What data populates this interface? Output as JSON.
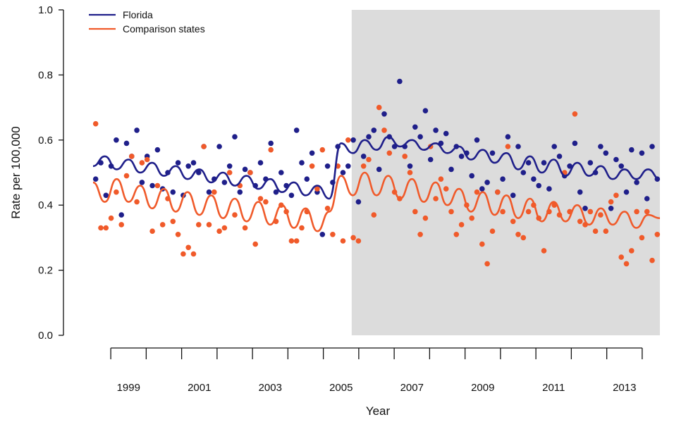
{
  "chart_data": {
    "type": "scatter",
    "xlabel": "Year",
    "ylabel": "Rate per 100,000",
    "xlim": [
      1998.5,
      2014.5
    ],
    "ylim": [
      0.0,
      1.0
    ],
    "x_ticks": [
      1999,
      2000,
      2001,
      2002,
      2003,
      2004,
      2005,
      2006,
      2007,
      2008,
      2009,
      2010,
      2011,
      2012,
      2013,
      2014
    ],
    "x_tick_labels": [
      {
        "x": 1999,
        "label": "1999"
      },
      {
        "x": 2001,
        "label": "2001"
      },
      {
        "x": 2003,
        "label": "2003"
      },
      {
        "x": 2005,
        "label": "2005"
      },
      {
        "x": 2007,
        "label": "2007"
      },
      {
        "x": 2009,
        "label": "2009"
      },
      {
        "x": 2011,
        "label": "2011"
      },
      {
        "x": 2013,
        "label": "2013"
      }
    ],
    "y_ticks": [
      {
        "value": 0.0,
        "label": "0.0"
      },
      {
        "value": 0.2,
        "label": "0.2"
      },
      {
        "value": 0.4,
        "label": "0.4"
      },
      {
        "value": 0.6,
        "label": "0.6"
      },
      {
        "value": 0.8,
        "label": "0.8"
      },
      {
        "value": 1.0,
        "label": "1.0"
      }
    ],
    "shaded_region": {
      "x_start": 2005.8,
      "x_end": 2014.5,
      "color": "#dcdcdc"
    },
    "legend_position": "top-left",
    "grid": false,
    "series": [
      {
        "name": "Florida",
        "color": "#1f1f8a",
        "points": [
          0.48,
          0.53,
          0.43,
          0.52,
          0.6,
          0.37,
          0.59,
          0.55,
          0.63,
          0.47,
          0.55,
          0.46,
          0.57,
          0.45,
          0.5,
          0.44,
          0.53,
          0.43,
          0.52,
          0.53,
          0.5,
          0.58,
          0.44,
          0.48,
          0.58,
          0.47,
          0.52,
          0.61,
          0.44,
          0.51,
          0.5,
          0.46,
          0.53,
          0.48,
          0.59,
          0.44,
          0.5,
          0.46,
          0.43,
          0.63,
          0.53,
          0.48,
          0.56,
          0.44,
          0.31,
          0.52,
          0.47,
          0.58,
          0.5,
          0.52,
          0.6,
          0.41,
          0.55,
          0.61,
          0.63,
          0.51,
          0.68,
          0.61,
          0.58,
          0.78,
          0.58,
          0.52,
          0.64,
          0.61,
          0.69,
          0.54,
          0.63,
          0.59,
          0.62,
          0.51,
          0.58,
          0.55,
          0.56,
          0.49,
          0.6,
          0.45,
          0.47,
          0.56,
          0.44,
          0.48,
          0.61,
          0.43,
          0.58,
          0.5,
          0.53,
          0.48,
          0.46,
          0.53,
          0.45,
          0.58,
          0.55,
          0.49,
          0.52,
          0.59,
          0.44,
          0.39,
          0.53,
          0.5,
          0.58,
          0.56,
          0.39,
          0.54,
          0.52,
          0.44,
          0.57,
          0.47,
          0.56,
          0.42,
          0.58,
          0.48
        ],
        "fit": [
          0.52,
          0.55,
          0.51,
          0.54,
          0.5,
          0.53,
          0.49,
          0.52,
          0.48,
          0.51,
          0.47,
          0.5,
          0.46,
          0.49,
          0.45,
          0.48,
          0.44,
          0.47,
          0.43,
          0.46,
          0.42,
          0.59,
          0.56,
          0.6,
          0.57,
          0.61,
          0.58,
          0.6,
          0.57,
          0.59,
          0.56,
          0.58,
          0.54,
          0.57,
          0.53,
          0.56,
          0.51,
          0.55,
          0.5,
          0.54,
          0.49,
          0.53,
          0.49,
          0.52,
          0.48,
          0.51,
          0.48,
          0.51,
          0.48
        ]
      },
      {
        "name": "Comparison states",
        "color": "#f05a2a",
        "points": [
          0.65,
          0.33,
          0.33,
          0.36,
          0.44,
          0.34,
          0.49,
          0.55,
          0.41,
          0.53,
          0.54,
          0.32,
          0.46,
          0.34,
          0.42,
          0.35,
          0.31,
          0.25,
          0.27,
          0.25,
          0.34,
          0.58,
          0.34,
          0.44,
          0.32,
          0.33,
          0.5,
          0.37,
          0.46,
          0.33,
          0.5,
          0.28,
          0.42,
          0.41,
          0.57,
          0.35,
          0.4,
          0.38,
          0.29,
          0.29,
          0.33,
          0.38,
          0.52,
          0.45,
          0.57,
          0.39,
          0.31,
          0.52,
          0.29,
          0.6,
          0.3,
          0.29,
          0.52,
          0.54,
          0.37,
          0.7,
          0.63,
          0.56,
          0.44,
          0.42,
          0.55,
          0.5,
          0.38,
          0.31,
          0.36,
          0.58,
          0.42,
          0.48,
          0.45,
          0.38,
          0.31,
          0.34,
          0.4,
          0.36,
          0.44,
          0.28,
          0.22,
          0.32,
          0.44,
          0.38,
          0.58,
          0.35,
          0.31,
          0.3,
          0.38,
          0.4,
          0.36,
          0.26,
          0.38,
          0.4,
          0.37,
          0.5,
          0.38,
          0.68,
          0.35,
          0.34,
          0.38,
          0.32,
          0.37,
          0.32,
          0.41,
          0.43,
          0.24,
          0.22,
          0.26,
          0.38,
          0.3,
          0.38,
          0.23,
          0.31
        ],
        "fit": [
          0.47,
          0.41,
          0.48,
          0.41,
          0.46,
          0.39,
          0.45,
          0.38,
          0.44,
          0.37,
          0.43,
          0.36,
          0.42,
          0.35,
          0.41,
          0.34,
          0.4,
          0.33,
          0.39,
          0.32,
          0.38,
          0.49,
          0.43,
          0.5,
          0.43,
          0.49,
          0.42,
          0.48,
          0.41,
          0.47,
          0.4,
          0.45,
          0.38,
          0.44,
          0.37,
          0.43,
          0.36,
          0.42,
          0.35,
          0.41,
          0.35,
          0.4,
          0.34,
          0.39,
          0.34,
          0.38,
          0.33,
          0.37,
          0.36
        ]
      }
    ]
  }
}
